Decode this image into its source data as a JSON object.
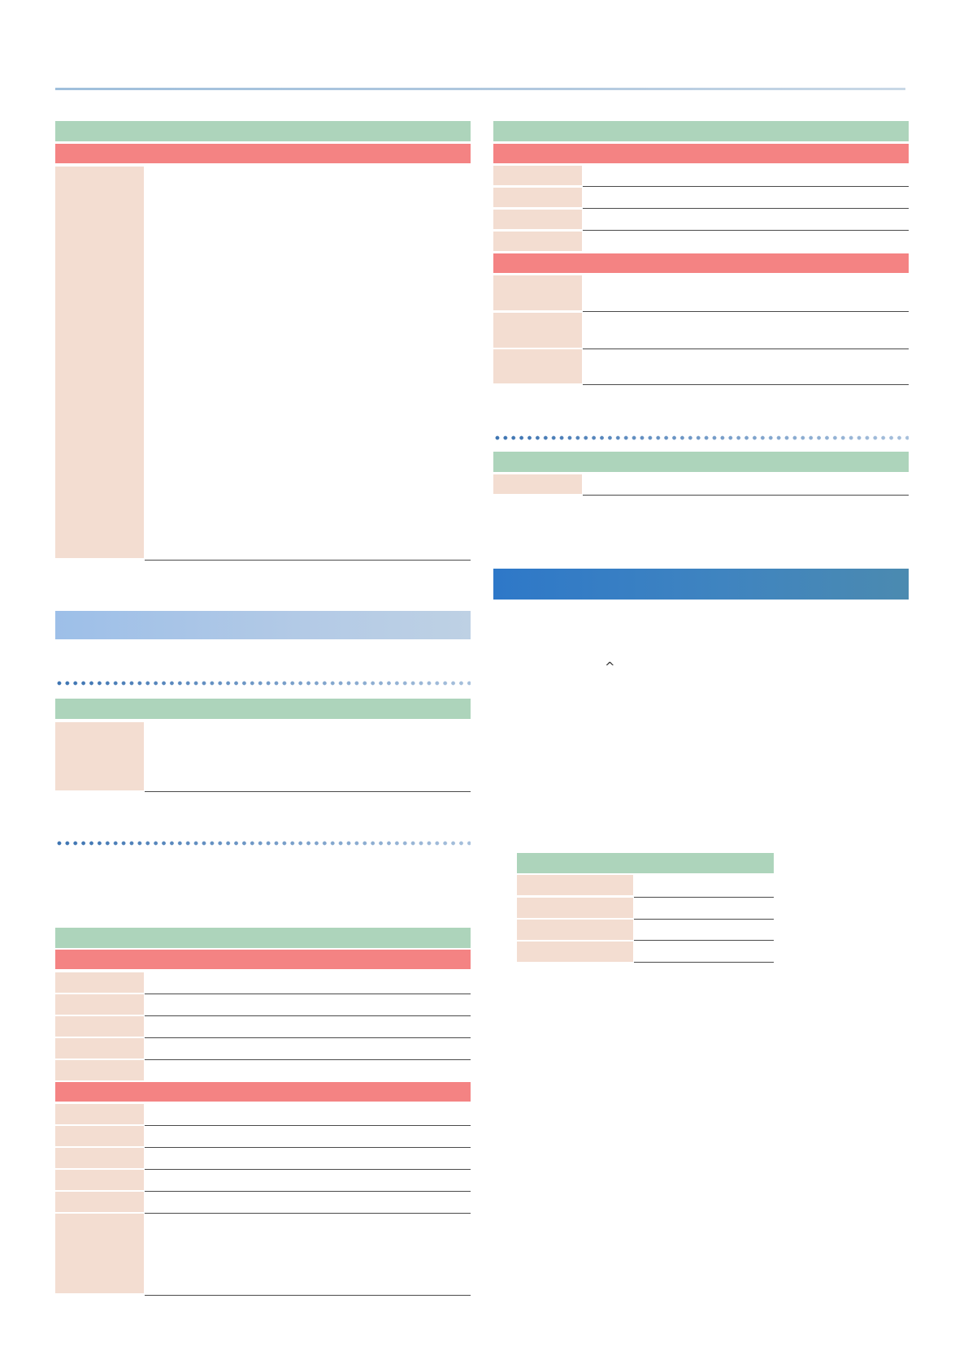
{
  "page": {
    "caret_symbol": "^"
  },
  "colors": {
    "green_bar": "#add4bb",
    "red_bar": "#f48383",
    "label_cell": "#f3ddd1",
    "light_blue_bar": "#9dbfe8",
    "dark_blue_bar": "#2e78c8",
    "dot_rule": "#3d74b2"
  }
}
